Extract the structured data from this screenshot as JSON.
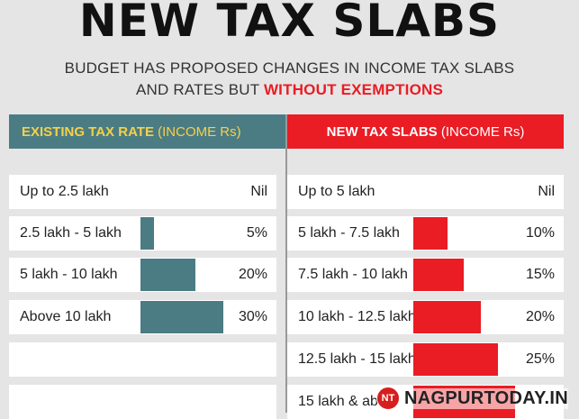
{
  "title": "NEW TAX SLABS",
  "subtitle_line1": "BUDGET HAS PROPOSED CHANGES IN INCOME TAX SLABS",
  "subtitle_line2_plain": "AND RATES BUT",
  "subtitle_line2_highlight": "WITHOUT EXEMPTIONS",
  "existing": {
    "header_bold": "EXISTING TAX RATE",
    "header_light": "(INCOME Rs)",
    "rows": [
      {
        "label": "Up to 2.5 lakh",
        "rate": "Nil",
        "value": 0
      },
      {
        "label": "2.5 lakh - 5 lakh",
        "rate": "5%",
        "value": 5
      },
      {
        "label": "5 lakh - 10  lakh",
        "rate": "20%",
        "value": 20
      },
      {
        "label": "Above 10 lakh",
        "rate": "30%",
        "value": 30
      }
    ]
  },
  "new": {
    "header_bold": "NEW TAX SLABS",
    "header_light": "(INCOME Rs)",
    "rows": [
      {
        "label": "Up to 5 lakh",
        "rate": "Nil",
        "value": 0
      },
      {
        "label": "5 lakh - 7.5 lakh",
        "rate": "10%",
        "value": 10
      },
      {
        "label": "7.5  lakh - 10 lakh",
        "rate": "15%",
        "value": 15
      },
      {
        "label": "10 lakh - 12.5 lakh",
        "rate": "20%",
        "value": 20
      },
      {
        "label": "12.5 lakh - 15 lakh",
        "rate": "25%",
        "value": 25
      },
      {
        "label": "15 lakh & abo",
        "rate": "",
        "value": 30
      }
    ]
  },
  "watermark": {
    "icon": "NT",
    "text": "NAGPURTODAY.IN"
  },
  "colors": {
    "teal": "#4b7c84",
    "red": "#ea1c24",
    "yellow": "#f4d14a"
  }
}
